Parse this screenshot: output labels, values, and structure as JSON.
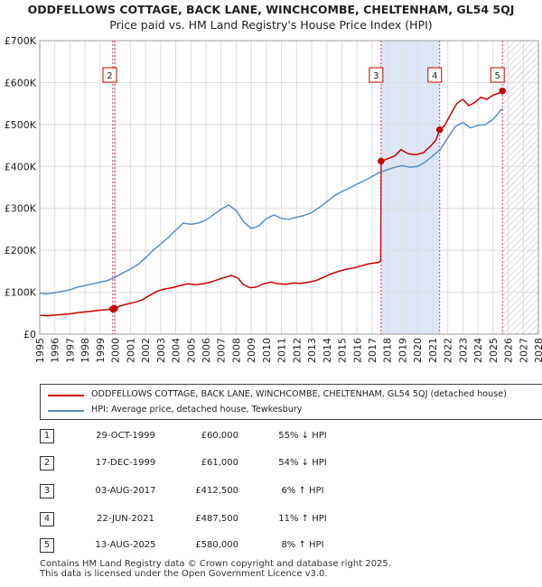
{
  "title": "ODDFELLOWS COTTAGE, BACK LANE, WINCHCOMBE, CHELTENHAM, GL54 5QJ",
  "subtitle": "Price paid vs. HM Land Registry's House Price Index (HPI)",
  "colors": {
    "property": "#cc0000",
    "hpi": "#5b8ec4",
    "marker_line": "#d04060",
    "shade": "#dde6f5",
    "grid": "#dddddd"
  },
  "chart_data": {
    "type": "line",
    "xlim": [
      1995,
      2028
    ],
    "ylim": [
      0,
      700000
    ],
    "y_ticks": [
      {
        "value": 0,
        "label": "£0"
      },
      {
        "value": 100000,
        "label": "£100K"
      },
      {
        "value": 200000,
        "label": "£200K"
      },
      {
        "value": 300000,
        "label": "£300K"
      },
      {
        "value": 400000,
        "label": "£400K"
      },
      {
        "value": 500000,
        "label": "£500K"
      },
      {
        "value": 600000,
        "label": "£600K"
      },
      {
        "value": 700000,
        "label": "£700K"
      }
    ],
    "x_ticks": [
      1995,
      1996,
      1997,
      1998,
      1999,
      2000,
      2001,
      2002,
      2003,
      2004,
      2005,
      2006,
      2007,
      2008,
      2009,
      2010,
      2011,
      2012,
      2013,
      2014,
      2015,
      2016,
      2017,
      2018,
      2019,
      2020,
      2021,
      2022,
      2023,
      2024,
      2025,
      2026,
      2027,
      2028
    ],
    "shaded_ranges": [
      [
        2017.59,
        2021.47
      ]
    ],
    "hatched_from": 2025.62,
    "series": [
      {
        "name": "ODDFELLOWS COTTAGE, BACK LANE, WINCHCOMBE, CHELTENHAM, GL54 5QJ (detached house)",
        "color": "#cc0000",
        "points": [
          [
            1995.0,
            45000
          ],
          [
            1995.5,
            44000
          ],
          [
            1996.0,
            45500
          ],
          [
            1996.5,
            47000
          ],
          [
            1997.0,
            48500
          ],
          [
            1997.5,
            51000
          ],
          [
            1998.0,
            53000
          ],
          [
            1998.5,
            55000
          ],
          [
            1999.0,
            57000
          ],
          [
            1999.5,
            58500
          ],
          [
            1999.83,
            60000
          ],
          [
            1999.96,
            61000
          ],
          [
            2000.3,
            67000
          ],
          [
            2000.8,
            72000
          ],
          [
            2001.3,
            76000
          ],
          [
            2001.8,
            82000
          ],
          [
            2002.3,
            93000
          ],
          [
            2002.8,
            103000
          ],
          [
            2003.3,
            108000
          ],
          [
            2003.8,
            111000
          ],
          [
            2004.3,
            116000
          ],
          [
            2004.8,
            120000
          ],
          [
            2005.3,
            118000
          ],
          [
            2005.8,
            120000
          ],
          [
            2006.3,
            124000
          ],
          [
            2006.8,
            130000
          ],
          [
            2007.3,
            136000
          ],
          [
            2007.7,
            140000
          ],
          [
            2008.1,
            134000
          ],
          [
            2008.5,
            118000
          ],
          [
            2008.9,
            111000
          ],
          [
            2009.3,
            112000
          ],
          [
            2009.8,
            120000
          ],
          [
            2010.3,
            124000
          ],
          [
            2010.8,
            120000
          ],
          [
            2011.3,
            119000
          ],
          [
            2011.8,
            122000
          ],
          [
            2012.3,
            121000
          ],
          [
            2012.8,
            124000
          ],
          [
            2013.3,
            128000
          ],
          [
            2013.8,
            136000
          ],
          [
            2014.3,
            144000
          ],
          [
            2014.8,
            150000
          ],
          [
            2015.3,
            155000
          ],
          [
            2015.8,
            158000
          ],
          [
            2016.3,
            163000
          ],
          [
            2016.8,
            168000
          ],
          [
            2017.4,
            171000
          ],
          [
            2017.56,
            175000
          ],
          [
            2017.59,
            412500
          ],
          [
            2018.0,
            418000
          ],
          [
            2018.5,
            425000
          ],
          [
            2018.9,
            440000
          ],
          [
            2019.4,
            430000
          ],
          [
            2019.9,
            428000
          ],
          [
            2020.4,
            433000
          ],
          [
            2020.9,
            450000
          ],
          [
            2021.2,
            462000
          ],
          [
            2021.47,
            487500
          ],
          [
            2021.8,
            498000
          ],
          [
            2022.2,
            525000
          ],
          [
            2022.6,
            550000
          ],
          [
            2023.0,
            560000
          ],
          [
            2023.4,
            545000
          ],
          [
            2023.8,
            553000
          ],
          [
            2024.2,
            565000
          ],
          [
            2024.6,
            560000
          ],
          [
            2025.0,
            570000
          ],
          [
            2025.4,
            575000
          ],
          [
            2025.62,
            580000
          ]
        ]
      },
      {
        "name": "HPI: Average price, detached house, Tewkesbury",
        "color": "#5b8ec4",
        "points": [
          [
            1995.0,
            98000
          ],
          [
            1995.5,
            96000
          ],
          [
            1996.0,
            99000
          ],
          [
            1996.5,
            102000
          ],
          [
            1997.0,
            106000
          ],
          [
            1997.5,
            112000
          ],
          [
            1998.0,
            116000
          ],
          [
            1998.5,
            120000
          ],
          [
            1999.0,
            124000
          ],
          [
            1999.5,
            128000
          ],
          [
            2000.0,
            136000
          ],
          [
            2000.5,
            146000
          ],
          [
            2001.0,
            155000
          ],
          [
            2001.5,
            166000
          ],
          [
            2002.0,
            182000
          ],
          [
            2002.5,
            200000
          ],
          [
            2003.0,
            215000
          ],
          [
            2003.5,
            230000
          ],
          [
            2004.0,
            248000
          ],
          [
            2004.5,
            265000
          ],
          [
            2005.0,
            262000
          ],
          [
            2005.5,
            265000
          ],
          [
            2006.0,
            272000
          ],
          [
            2006.5,
            285000
          ],
          [
            2007.0,
            298000
          ],
          [
            2007.5,
            308000
          ],
          [
            2008.0,
            295000
          ],
          [
            2008.5,
            268000
          ],
          [
            2009.0,
            252000
          ],
          [
            2009.5,
            258000
          ],
          [
            2010.0,
            276000
          ],
          [
            2010.5,
            284000
          ],
          [
            2011.0,
            276000
          ],
          [
            2011.5,
            274000
          ],
          [
            2012.0,
            279000
          ],
          [
            2012.5,
            283000
          ],
          [
            2013.0,
            290000
          ],
          [
            2013.5,
            302000
          ],
          [
            2014.0,
            316000
          ],
          [
            2014.5,
            330000
          ],
          [
            2015.0,
            340000
          ],
          [
            2015.5,
            348000
          ],
          [
            2016.0,
            358000
          ],
          [
            2016.5,
            366000
          ],
          [
            2017.0,
            376000
          ],
          [
            2017.5,
            386000
          ],
          [
            2018.0,
            392000
          ],
          [
            2018.5,
            398000
          ],
          [
            2019.0,
            402000
          ],
          [
            2019.5,
            398000
          ],
          [
            2020.0,
            400000
          ],
          [
            2020.5,
            410000
          ],
          [
            2021.0,
            425000
          ],
          [
            2021.5,
            440000
          ],
          [
            2022.0,
            468000
          ],
          [
            2022.5,
            495000
          ],
          [
            2023.0,
            505000
          ],
          [
            2023.5,
            492000
          ],
          [
            2024.0,
            498000
          ],
          [
            2024.5,
            500000
          ],
          [
            2025.0,
            512000
          ],
          [
            2025.6,
            538000
          ]
        ]
      }
    ],
    "sales": [
      {
        "num": "1",
        "x": 1999.83,
        "price": 60000
      },
      {
        "num": "2",
        "x": 1999.96,
        "price": 61000
      },
      {
        "num": "3",
        "x": 2017.59,
        "price": 412500
      },
      {
        "num": "4",
        "x": 2021.47,
        "price": 487500
      },
      {
        "num": "5",
        "x": 2025.62,
        "price": 580000
      }
    ],
    "labeled_markers": [
      "2",
      "3",
      "4",
      "5"
    ]
  },
  "legend": {
    "property_label": "ODDFELLOWS COTTAGE, BACK LANE, WINCHCOMBE, CHELTENHAM, GL54 5QJ (detached house)",
    "hpi_label": "HPI: Average price, detached house, Tewkesbury"
  },
  "transactions": [
    {
      "num": "1",
      "date": "29-OCT-1999",
      "price": "£60,000",
      "hpi": "55% ↓ HPI"
    },
    {
      "num": "2",
      "date": "17-DEC-1999",
      "price": "£61,000",
      "hpi": "54% ↓ HPI"
    },
    {
      "num": "3",
      "date": "03-AUG-2017",
      "price": "£412,500",
      "hpi": "6% ↑ HPI"
    },
    {
      "num": "4",
      "date": "22-JUN-2021",
      "price": "£487,500",
      "hpi": "11% ↑ HPI"
    },
    {
      "num": "5",
      "date": "13-AUG-2025",
      "price": "£580,000",
      "hpi": "8% ↑ HPI"
    }
  ],
  "footer": {
    "line1": "Contains HM Land Registry data © Crown copyright and database right 2025.",
    "line2": "This data is licensed under the Open Government Licence v3.0."
  }
}
